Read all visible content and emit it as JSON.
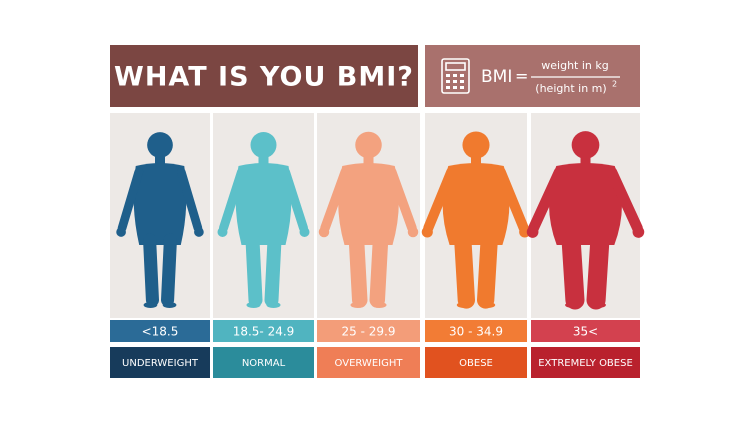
{
  "header": {
    "title": "WHAT IS YOU BMI?"
  },
  "formula": {
    "lhs": "BMI",
    "equals": "=",
    "numerator": "weight in kg",
    "denominator": "(height in m)",
    "exponent": "2"
  },
  "columns": [
    {
      "range": "<18.5",
      "label": "UNDERWEIGHT"
    },
    {
      "range": "18.5- 24.9",
      "label": "NORMAL"
    },
    {
      "range": "25 - 29.9",
      "label": "OVERWEIGHT"
    },
    {
      "range": "30 - 34.9",
      "label": "OBESE"
    },
    {
      "range": "35<",
      "label": "EXTREMELY OBESE"
    }
  ]
}
